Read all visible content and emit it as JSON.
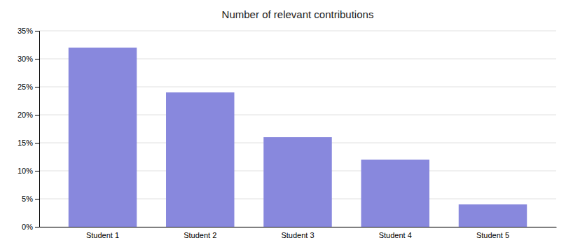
{
  "chart_data": {
    "type": "bar",
    "title": "Number of relevant contributions",
    "categories": [
      "Student 1",
      "Student 2",
      "Student 3",
      "Student 4",
      "Student 5"
    ],
    "values": [
      0.32,
      0.24,
      0.16,
      0.12,
      0.04
    ],
    "color": "#8888dd",
    "ylim": [
      0,
      0.35
    ],
    "yticks": [
      {
        "value": 0.0,
        "label": "0%"
      },
      {
        "value": 0.05,
        "label": "5%"
      },
      {
        "value": 0.1,
        "label": "10%"
      },
      {
        "value": 0.15,
        "label": "15%"
      },
      {
        "value": 0.2,
        "label": "20%"
      },
      {
        "value": 0.25,
        "label": "25%"
      },
      {
        "value": 0.3,
        "label": "30%"
      },
      {
        "value": 0.35,
        "label": "35%"
      }
    ],
    "grid": true
  }
}
